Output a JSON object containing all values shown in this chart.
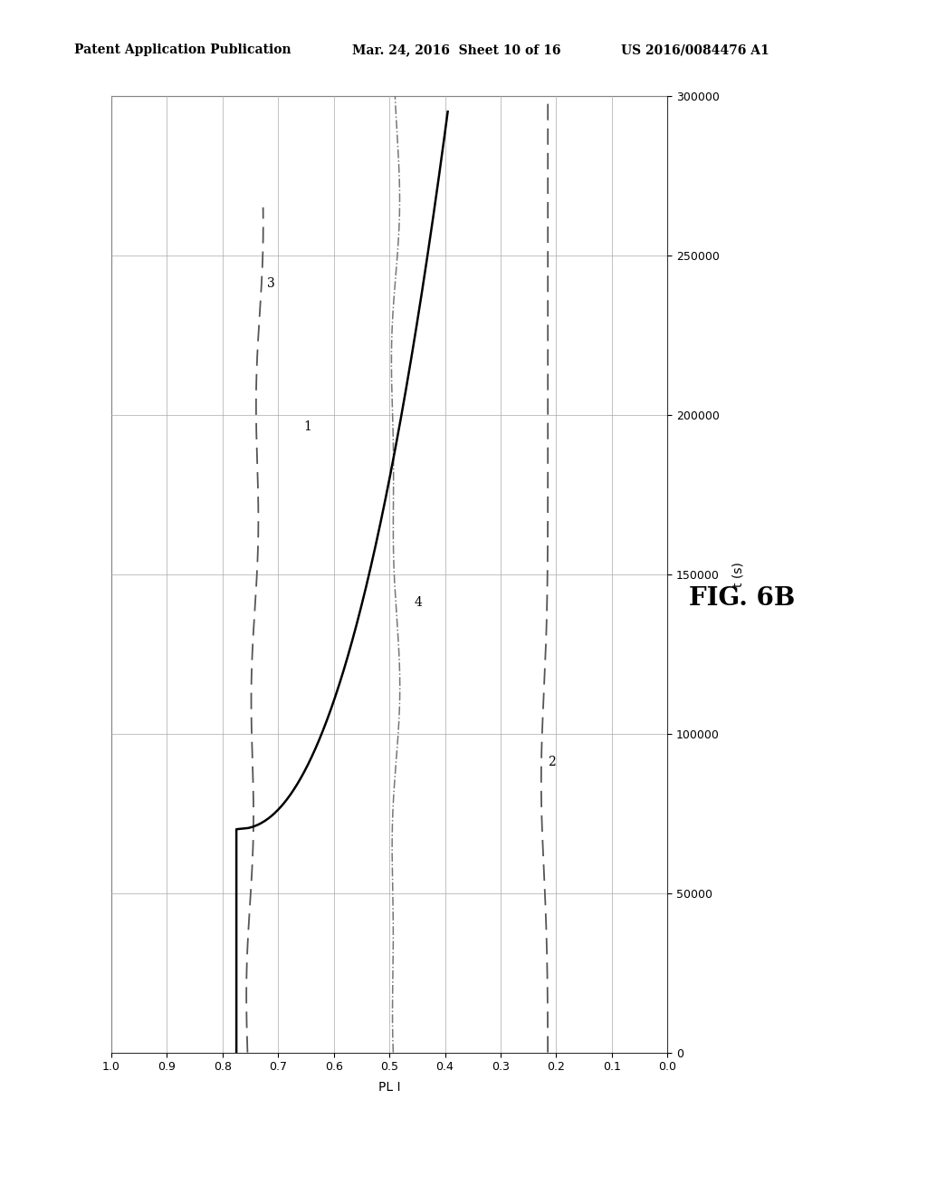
{
  "title": "FIG. 6B",
  "xlabel": "PL I",
  "ylabel": "t (s)",
  "xlim": [
    1.0,
    0.0
  ],
  "ylim": [
    0,
    300000
  ],
  "yticks": [
    0,
    50000,
    100000,
    150000,
    200000,
    250000,
    300000
  ],
  "xticks": [
    1.0,
    0.9,
    0.8,
    0.7,
    0.6,
    0.5,
    0.4,
    0.3,
    0.2,
    0.1,
    0.0
  ],
  "header_left": "Patent Application Publication",
  "header_mid": "Mar. 24, 2016  Sheet 10 of 16",
  "header_right": "US 2016/0084476 A1",
  "background_color": "#ffffff",
  "grid_color": "#aaaaaa",
  "curve1_color": "#000000",
  "curve2_color": "#555555",
  "curve3_color": "#555555",
  "curve4_color": "#777777"
}
